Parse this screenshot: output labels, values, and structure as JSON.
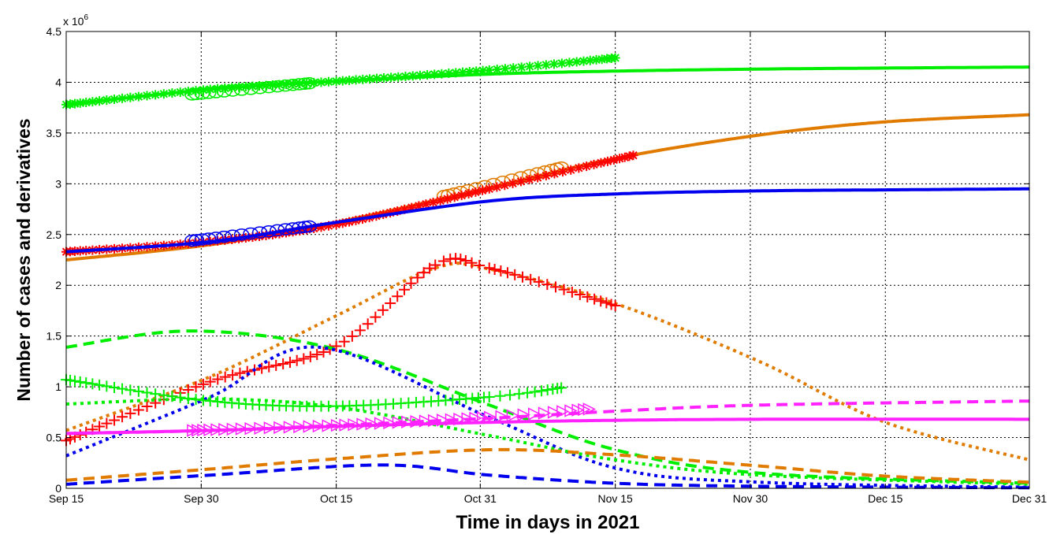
{
  "chart_data": {
    "type": "line",
    "xlabel": "Time in days in 2021",
    "ylabel": "Number of cases and derivatives",
    "y_multiplier_label": "x 10",
    "y_multiplier_exp": "6",
    "x_range": [
      "2021-09-15",
      "2021-12-31"
    ],
    "ylim": [
      0,
      4500000
    ],
    "grid": true,
    "x_ticks": [
      {
        "date": "2021-09-15",
        "label": "Sep 15"
      },
      {
        "date": "2021-09-30",
        "label": "Sep 30"
      },
      {
        "date": "2021-10-15",
        "label": "Oct 15"
      },
      {
        "date": "2021-10-31",
        "label": "Oct 31"
      },
      {
        "date": "2021-11-15",
        "label": "Nov 15"
      },
      {
        "date": "2021-11-30",
        "label": "Nov 30"
      },
      {
        "date": "2021-12-15",
        "label": "Dec 15"
      },
      {
        "date": "2021-12-31",
        "label": "Dec 31"
      }
    ],
    "y_ticks": [
      {
        "value": 0,
        "label": "0"
      },
      {
        "value": 500000,
        "label": "0.5"
      },
      {
        "value": 1000000,
        "label": "1"
      },
      {
        "value": 1500000,
        "label": "1.5"
      },
      {
        "value": 2000000,
        "label": "2"
      },
      {
        "value": 2500000,
        "label": "2.5"
      },
      {
        "value": 3000000,
        "label": "3"
      },
      {
        "value": 3500000,
        "label": "3.5"
      },
      {
        "value": 4000000,
        "label": "4"
      },
      {
        "value": 4500000,
        "label": "4.5"
      }
    ],
    "series": [
      {
        "color": "#00ee00",
        "style": "solid",
        "marker": "none",
        "x": [
          "2021-09-15",
          "2021-10-01",
          "2021-10-15",
          "2021-11-01",
          "2021-11-15",
          "2021-12-01",
          "2021-12-15",
          "2021-12-31"
        ],
        "values": [
          3780000,
          3930000,
          4010000,
          4080000,
          4110000,
          4130000,
          4140000,
          4150000
        ]
      },
      {
        "color": "#00ee00",
        "style": "none",
        "marker": "asterisk",
        "x": [
          "2021-09-15",
          "2021-10-01",
          "2021-10-15",
          "2021-11-01",
          "2021-11-15"
        ],
        "values": [
          3780000,
          3930000,
          4010000,
          4120000,
          4240000
        ]
      },
      {
        "color": "#00ee00",
        "style": "none",
        "marker": "circle",
        "x": [
          "2021-09-29",
          "2021-10-12"
        ],
        "values": [
          3880000,
          3990000
        ]
      },
      {
        "color": "#e07b00",
        "style": "solid",
        "marker": "none",
        "x": [
          "2021-09-15",
          "2021-10-01",
          "2021-10-15",
          "2021-11-01",
          "2021-11-15",
          "2021-12-01",
          "2021-12-15",
          "2021-12-31"
        ],
        "values": [
          2250000,
          2400000,
          2620000,
          2960000,
          3250000,
          3480000,
          3610000,
          3680000
        ]
      },
      {
        "color": "#e07b00",
        "style": "none",
        "marker": "circle",
        "x": [
          "2021-10-27",
          "2021-11-09"
        ],
        "values": [
          2880000,
          3160000
        ]
      },
      {
        "color": "#ff0000",
        "style": "none",
        "marker": "asterisk",
        "x": [
          "2021-09-15",
          "2021-10-01",
          "2021-10-15",
          "2021-11-01",
          "2021-11-17"
        ],
        "values": [
          2330000,
          2430000,
          2600000,
          2950000,
          3280000
        ]
      },
      {
        "color": "#0000ee",
        "style": "solid",
        "marker": "none",
        "x": [
          "2021-09-15",
          "2021-10-01",
          "2021-10-15",
          "2021-11-01",
          "2021-11-15",
          "2021-12-01",
          "2021-12-15",
          "2021-12-31"
        ],
        "values": [
          2330000,
          2430000,
          2620000,
          2830000,
          2900000,
          2930000,
          2940000,
          2950000
        ]
      },
      {
        "color": "#0000ee",
        "style": "none",
        "marker": "circle",
        "x": [
          "2021-09-29",
          "2021-10-12"
        ],
        "values": [
          2440000,
          2580000
        ]
      },
      {
        "color": "#e07b00",
        "style": "dotted",
        "marker": "none",
        "x": [
          "2021-09-15",
          "2021-10-01",
          "2021-10-15",
          "2021-10-26",
          "2021-11-01",
          "2021-11-15",
          "2021-12-01",
          "2021-12-15",
          "2021-12-31"
        ],
        "values": [
          570000,
          1100000,
          1700000,
          2170000,
          2160000,
          1820000,
          1250000,
          650000,
          280000
        ]
      },
      {
        "color": "#ff0000",
        "style": "none",
        "marker": "plus",
        "x": [
          "2021-09-15",
          "2021-10-01",
          "2021-10-15",
          "2021-10-26",
          "2021-11-01",
          "2021-11-15"
        ],
        "values": [
          470000,
          1050000,
          1400000,
          2200000,
          2170000,
          1800000
        ]
      },
      {
        "color": "#00ee00",
        "style": "dashed",
        "marker": "none",
        "x": [
          "2021-09-15",
          "2021-09-29",
          "2021-10-15",
          "2021-11-01",
          "2021-11-15",
          "2021-12-01",
          "2021-12-31"
        ],
        "values": [
          1390000,
          1550000,
          1370000,
          820000,
          380000,
          150000,
          50000
        ]
      },
      {
        "color": "#0000ee",
        "style": "dotted",
        "marker": "none",
        "x": [
          "2021-09-15",
          "2021-10-01",
          "2021-10-13",
          "2021-11-01",
          "2021-11-15",
          "2021-12-01",
          "2021-12-31"
        ],
        "values": [
          320000,
          900000,
          1390000,
          700000,
          200000,
          60000,
          10000
        ]
      },
      {
        "color": "#00ee00",
        "style": "none",
        "marker": "plus",
        "x": [
          "2021-09-15",
          "2021-10-01",
          "2021-10-15",
          "2021-11-01",
          "2021-11-09"
        ],
        "values": [
          1070000,
          860000,
          810000,
          900000,
          990000
        ]
      },
      {
        "color": "#00ee00",
        "style": "dotted",
        "marker": "none",
        "x": [
          "2021-09-15",
          "2021-10-01",
          "2021-10-15",
          "2021-11-01",
          "2021-11-15",
          "2021-12-01",
          "2021-12-31"
        ],
        "values": [
          830000,
          880000,
          800000,
          520000,
          280000,
          130000,
          40000
        ]
      },
      {
        "color": "#ff22ff",
        "style": "solid",
        "marker": "none",
        "x": [
          "2021-09-15",
          "2021-10-01",
          "2021-10-15",
          "2021-11-01",
          "2021-11-15",
          "2021-12-01",
          "2021-12-31"
        ],
        "values": [
          540000,
          570000,
          610000,
          650000,
          670000,
          680000,
          680000
        ]
      },
      {
        "color": "#ff22ff",
        "style": "dashed",
        "marker": "none",
        "x": [
          "2021-09-15",
          "2021-10-01",
          "2021-10-15",
          "2021-11-01",
          "2021-11-15",
          "2021-12-01",
          "2021-12-31"
        ],
        "values": [
          540000,
          570000,
          620000,
          690000,
          760000,
          820000,
          860000
        ]
      },
      {
        "color": "#ff22ff",
        "style": "none",
        "marker": "triangle-right",
        "x": [
          "2021-09-29",
          "2021-10-15",
          "2021-11-01",
          "2021-11-12"
        ],
        "values": [
          570000,
          620000,
          700000,
          780000
        ]
      },
      {
        "color": "#e07b00",
        "style": "dashed",
        "marker": "none",
        "x": [
          "2021-09-15",
          "2021-10-01",
          "2021-10-15",
          "2021-11-01",
          "2021-11-15",
          "2021-12-01",
          "2021-12-15",
          "2021-12-31"
        ],
        "values": [
          80000,
          190000,
          290000,
          380000,
          330000,
          220000,
          120000,
          60000
        ]
      },
      {
        "color": "#0000ee",
        "style": "dashed",
        "marker": "none",
        "x": [
          "2021-09-15",
          "2021-10-01",
          "2021-10-20",
          "2021-11-01",
          "2021-11-15",
          "2021-12-01",
          "2021-12-31"
        ],
        "values": [
          40000,
          130000,
          230000,
          130000,
          50000,
          20000,
          5000
        ]
      }
    ]
  }
}
